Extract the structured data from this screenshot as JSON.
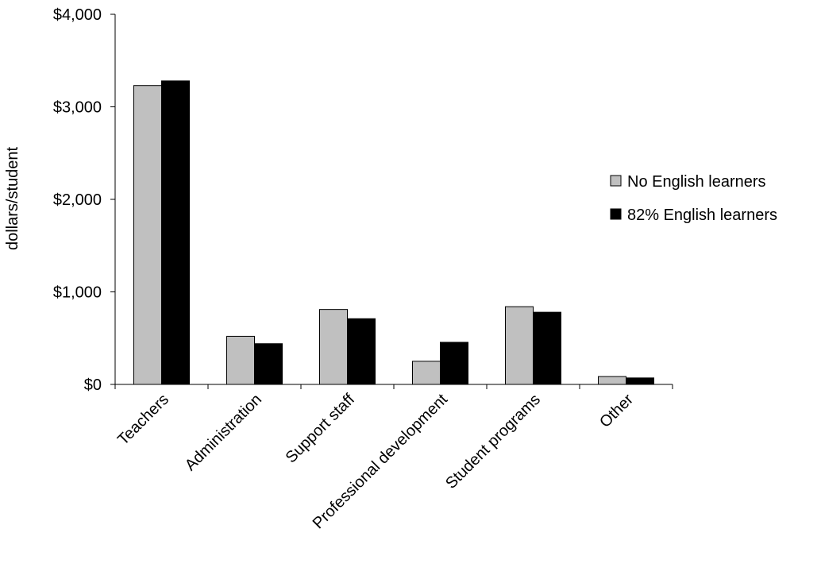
{
  "chart_data": {
    "type": "bar",
    "title": "",
    "xlabel": "",
    "ylabel": "dollars/student",
    "ylim": [
      0,
      4000
    ],
    "yticks": [
      0,
      1000,
      2000,
      3000,
      4000
    ],
    "ytick_labels": [
      "$0",
      "$1,000",
      "$2,000",
      "$3,000",
      "$4,000"
    ],
    "grid": false,
    "legend_position": "right",
    "categories": [
      "Teachers",
      "Administration",
      "Support staff",
      "Professional development",
      "Student programs",
      "Other"
    ],
    "series": [
      {
        "name": "No English learners",
        "color": "#c0c0c0",
        "values": [
          3230,
          520,
          810,
          250,
          840,
          85
        ]
      },
      {
        "name": "82% English learners",
        "color": "#000000",
        "values": [
          3280,
          440,
          710,
          455,
          780,
          70
        ]
      }
    ]
  }
}
